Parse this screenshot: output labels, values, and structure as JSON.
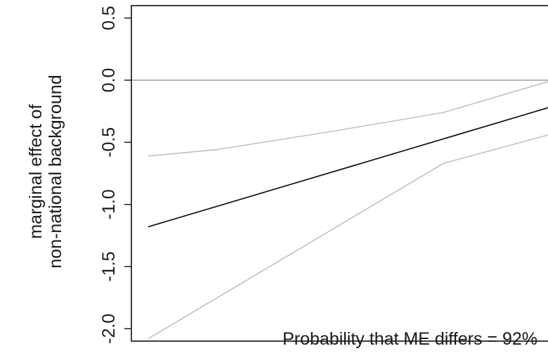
{
  "chart_data": {
    "type": "line",
    "title": "",
    "xlabel": "",
    "ylabel_lines": [
      "marginal effect of",
      "non-national background"
    ],
    "ylim": [
      -2.1,
      0.6
    ],
    "yticks": [
      -2.0,
      -1.5,
      -1.0,
      -0.5,
      0.0,
      0.5
    ],
    "ytick_labels": [
      "-2.0",
      "-1.5",
      "-1.0",
      "-0.5",
      "0.0",
      "0.5"
    ],
    "xlim": [
      0,
      1
    ],
    "reference_line_y": 0.0,
    "annotation": "Probability that ME differs = 92%",
    "series": [
      {
        "role": "estimate",
        "color": "#111111",
        "x": [
          0.04,
          1.0
        ],
        "y": [
          -1.18,
          -0.21
        ]
      },
      {
        "role": "upper-ci",
        "color": "#bdbdbd",
        "x": [
          0.04,
          0.2,
          0.48,
          0.74,
          1.0
        ],
        "y": [
          -0.61,
          -0.56,
          -0.41,
          -0.26,
          0.0
        ]
      },
      {
        "role": "lower-ci",
        "color": "#bdbdbd",
        "x": [
          0.04,
          0.74,
          1.0
        ],
        "y": [
          -2.08,
          -0.67,
          -0.43
        ]
      }
    ],
    "colors": {
      "axis": "#111111",
      "reference_line": "#8a8a8a",
      "ci": "#bdbdbd",
      "estimate": "#111111"
    }
  }
}
